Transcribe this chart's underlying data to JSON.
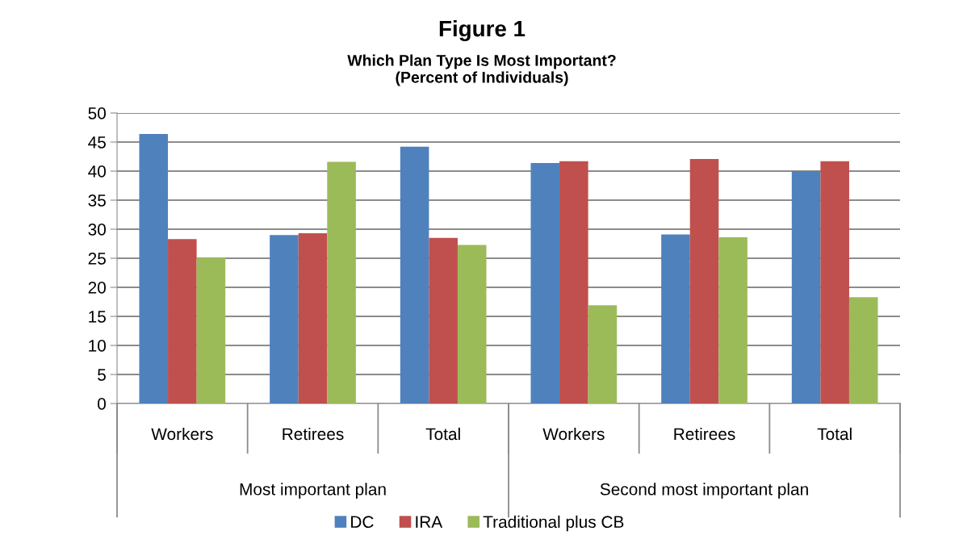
{
  "chart_data": {
    "type": "bar",
    "title": "Figure 1",
    "subtitle": "Which Plan Type Is Most Important?\n(Percent of Individuals)",
    "categories": [
      "Workers",
      "Retirees",
      "Total",
      "Workers",
      "Retirees",
      "Total"
    ],
    "series": [
      {
        "name": "DC",
        "color": "#4f81bd",
        "values": [
          46.4,
          29.0,
          44.2,
          41.4,
          29.1,
          40.0
        ]
      },
      {
        "name": "IRA",
        "color": "#c0504d",
        "values": [
          28.3,
          29.3,
          28.5,
          41.7,
          42.1,
          41.7
        ]
      },
      {
        "name": "Traditional plus CB",
        "color": "#9bbb59",
        "values": [
          25.1,
          41.6,
          27.3,
          16.9,
          28.6,
          18.3
        ]
      }
    ],
    "annotations": [
      "Most important plan",
      "Second most important plan"
    ],
    "ylim": [
      0,
      50
    ],
    "yticks": [
      0,
      5,
      10,
      15,
      20,
      25,
      30,
      35,
      40,
      45,
      50
    ],
    "grid": "y",
    "legend": "bottom"
  }
}
